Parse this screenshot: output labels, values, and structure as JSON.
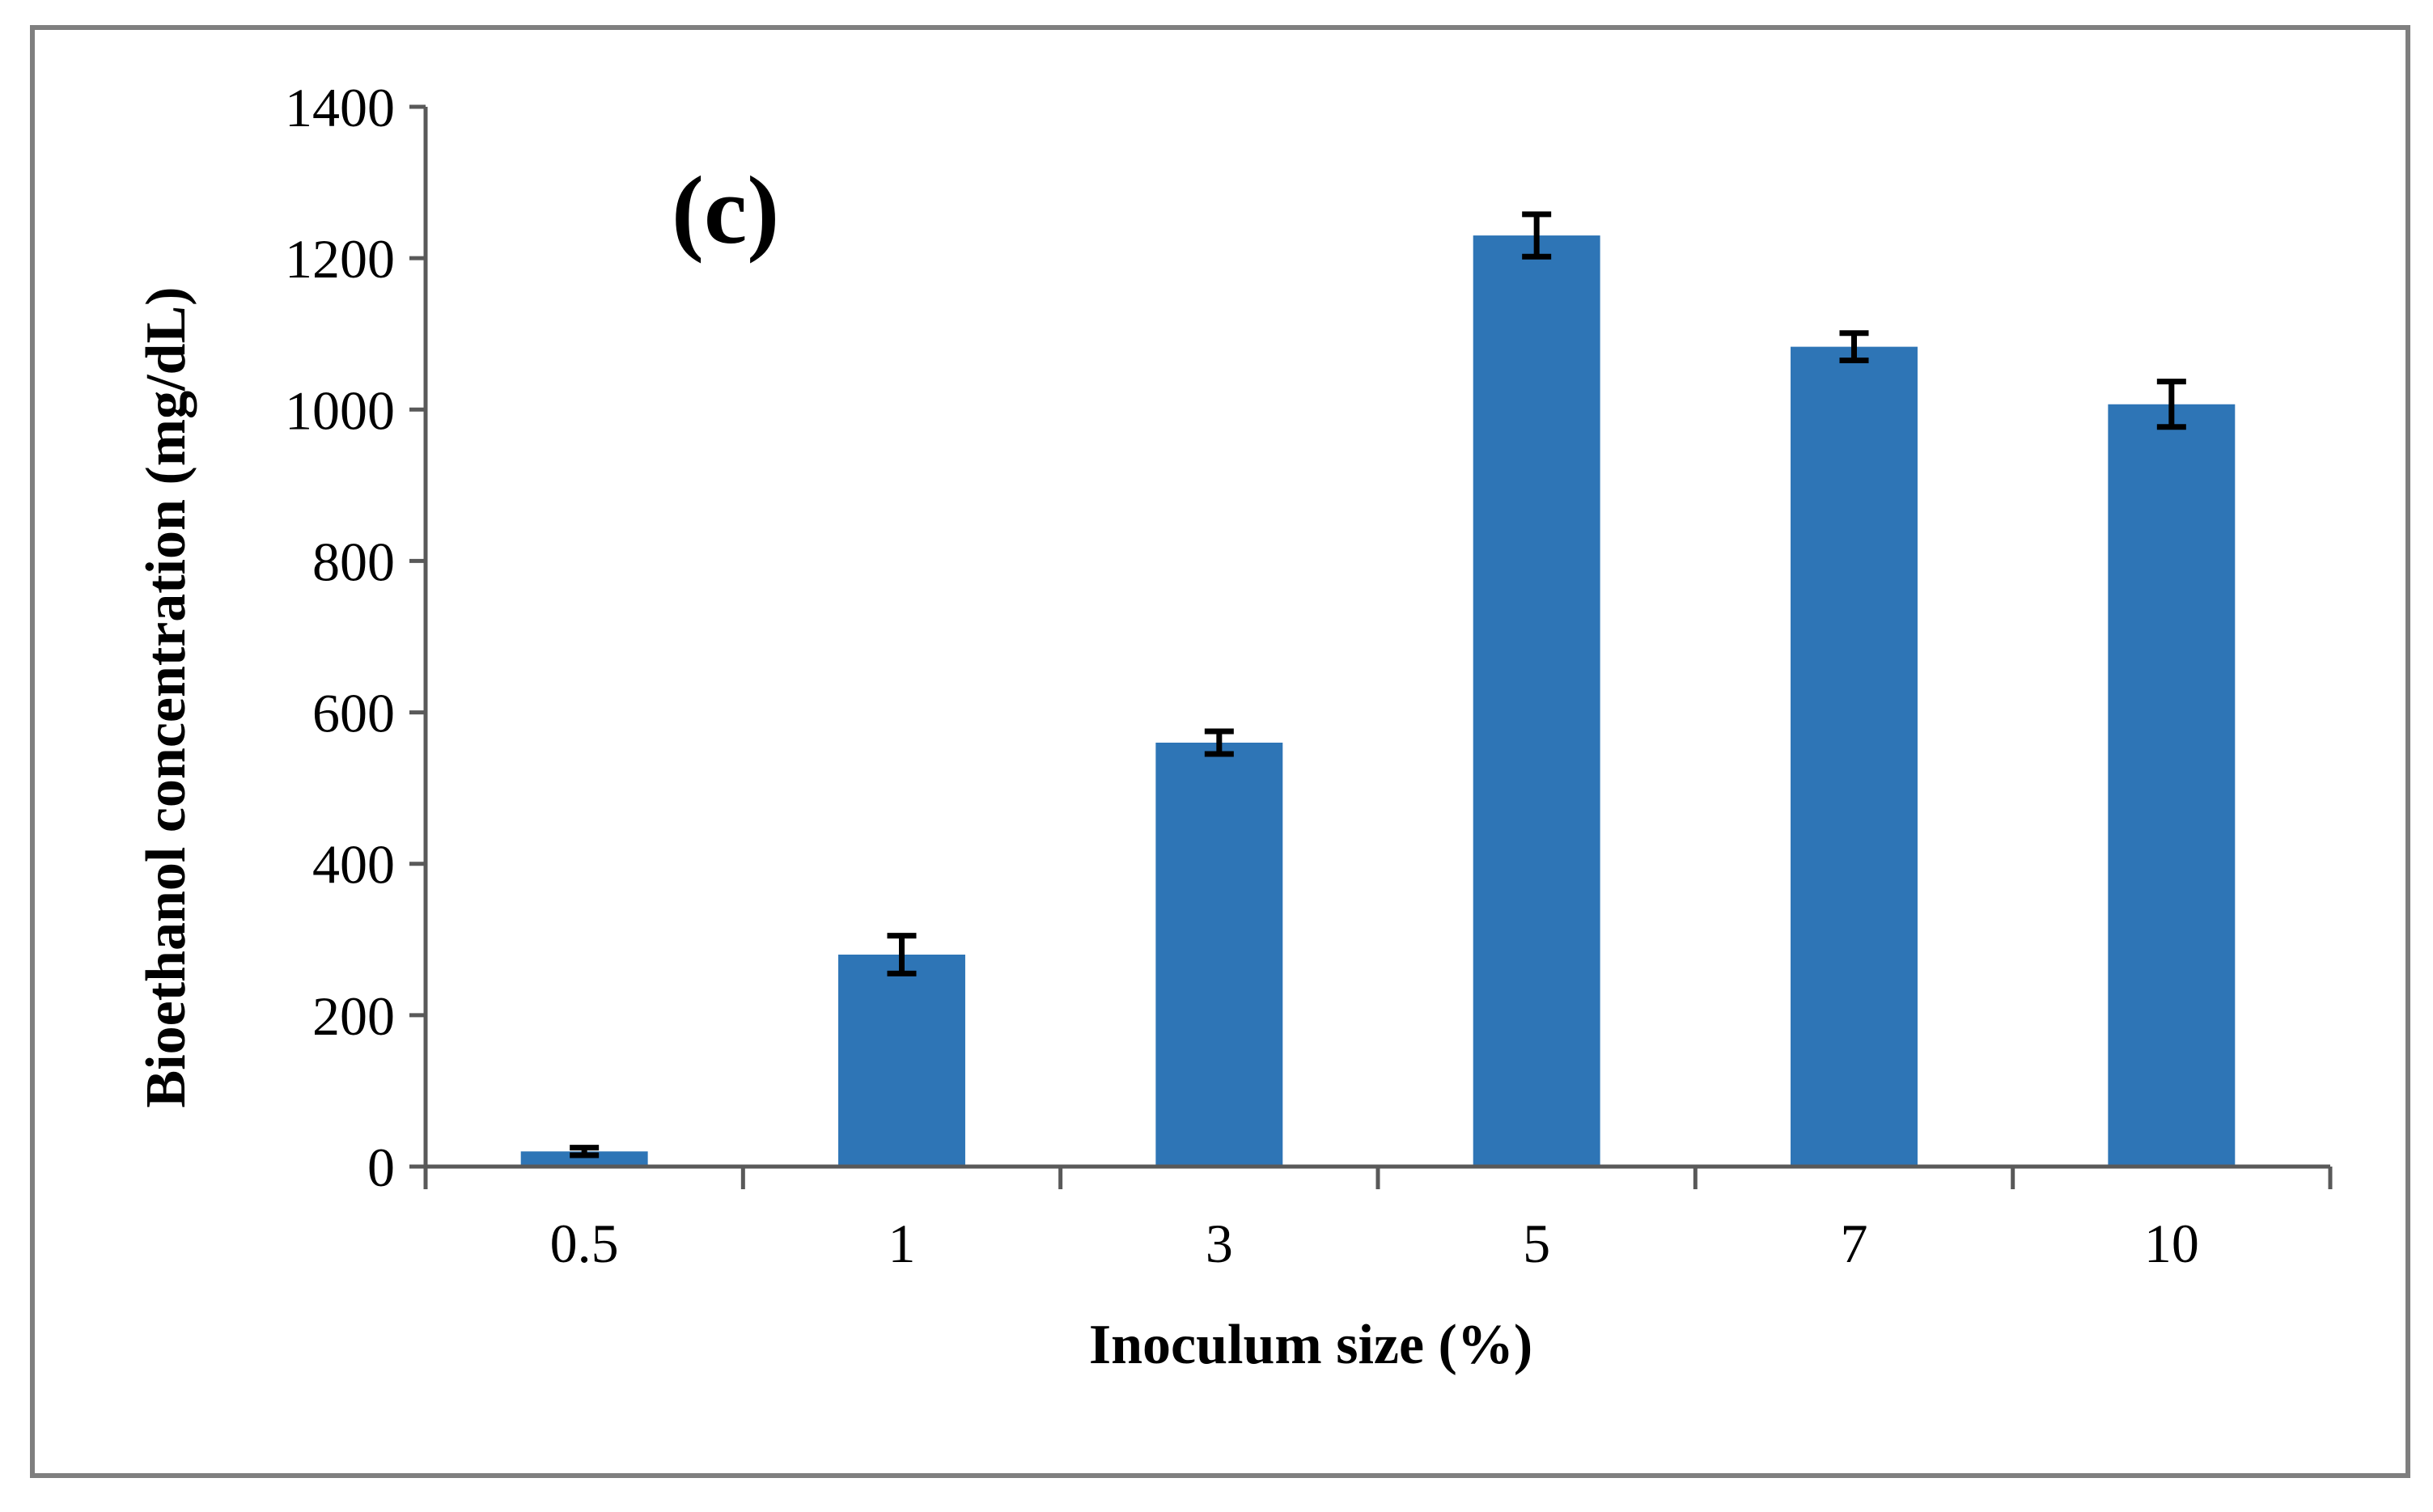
{
  "chart_data": {
    "type": "bar",
    "panel_label": "(c)",
    "title": "",
    "xlabel": "Inoculum size (%)",
    "ylabel": "Bioethanol concentration (mg/dL)",
    "categories": [
      "0.5",
      "1",
      "3",
      "5",
      "7",
      "10"
    ],
    "values": [
      20,
      280,
      560,
      1230,
      1083,
      1007
    ],
    "errors": [
      5,
      25,
      15,
      28,
      18,
      30
    ],
    "ylim": [
      0,
      1400
    ],
    "yticks": [
      0,
      200,
      400,
      600,
      800,
      1000,
      1200,
      1400
    ],
    "ytick_labels": [
      "0",
      "200",
      "400",
      "600",
      "800",
      "1000",
      "1200",
      "1400"
    ],
    "grid": false,
    "legend": "none",
    "colors": {
      "bar": "#2E75B6",
      "error_bar": "#000000",
      "axis": "#595959",
      "border": "#7F7F7F"
    }
  }
}
